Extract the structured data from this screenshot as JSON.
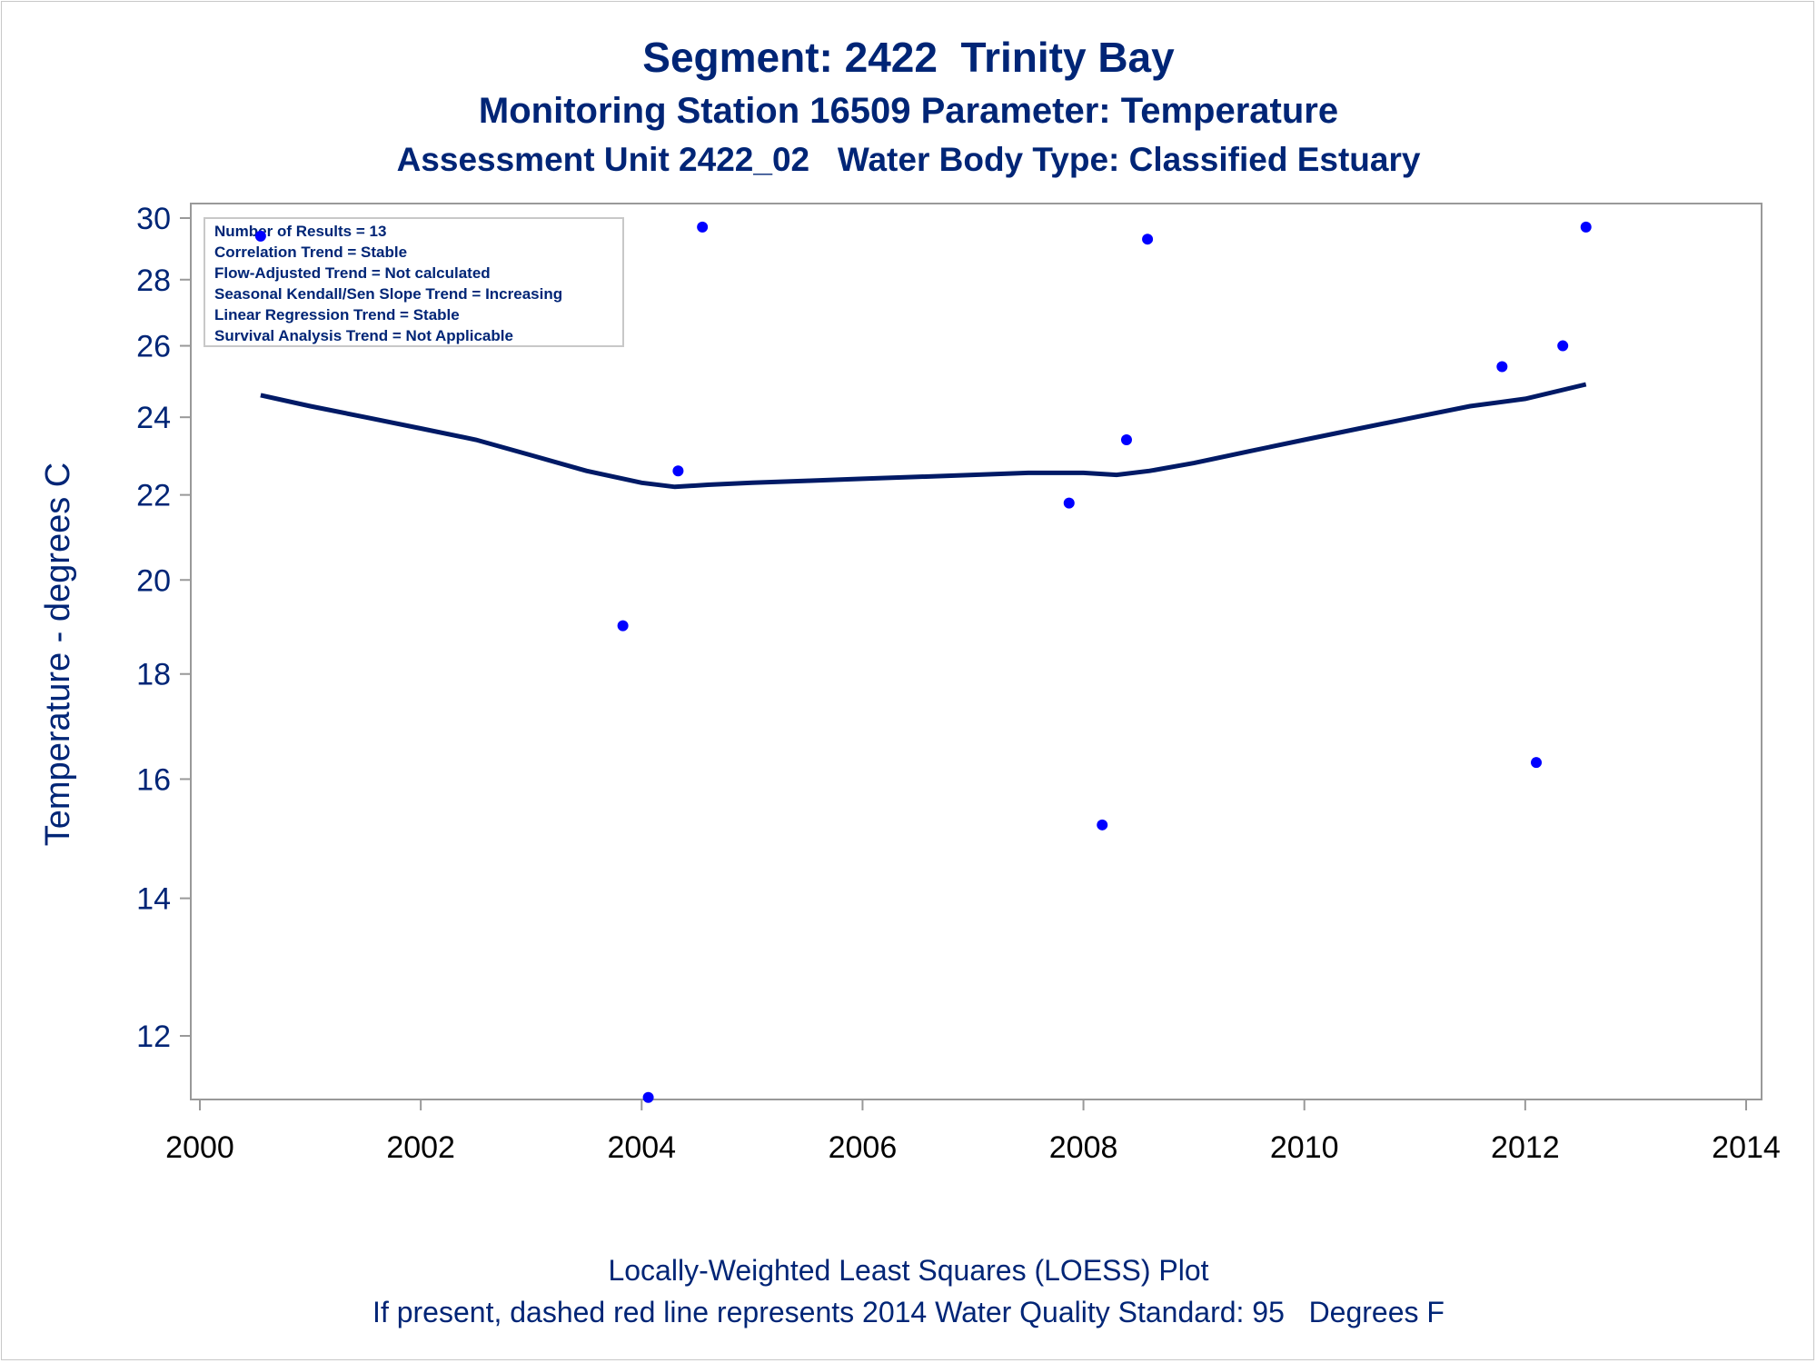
{
  "titles": {
    "line1": "Segment: 2422  Trinity Bay",
    "line2": "Monitoring Station 16509 Parameter: Temperature",
    "line3": "Assessment Unit 2422_02   Water Body Type: Classified Estuary"
  },
  "footnotes": {
    "line1": "Locally-Weighted Least Squares (LOESS) Plot",
    "line2": "If present, dashed red line represents 2014 Water Quality Standard: 95   Degrees F"
  },
  "stats_box": [
    "Number of Results = 13",
    "Correlation Trend = Stable",
    "Flow-Adjusted Trend = Not calculated",
    "Seasonal Kendall/Sen Slope Trend = Increasing",
    "Linear Regression Trend = Stable",
    "Survival Analysis Trend = Not Applicable"
  ],
  "colors": {
    "text": "#002576",
    "points": "#0000ff",
    "loess_line": "#001a66",
    "axis": "#999999"
  },
  "chart_data": {
    "type": "scatter",
    "ylabel": "Temperature - degrees C",
    "xlabel": "",
    "xlim": [
      2000,
      2014
    ],
    "ylim": [
      11,
      30.5
    ],
    "y_scale": "log",
    "grid": false,
    "x_ticks": [
      2000,
      2002,
      2004,
      2006,
      2008,
      2010,
      2012,
      2014
    ],
    "y_ticks": [
      12,
      14,
      16,
      18,
      20,
      22,
      24,
      26,
      28,
      30
    ],
    "series": [
      {
        "kind": "points",
        "x": [
          2000.55,
          2003.83,
          2004.06,
          2004.33,
          2004.55,
          2007.87,
          2008.17,
          2008.39,
          2008.58,
          2011.79,
          2012.1,
          2012.34,
          2012.55
        ],
        "y": [
          29.4,
          19.0,
          11.2,
          22.6,
          29.7,
          21.8,
          15.2,
          23.4,
          29.3,
          25.4,
          16.3,
          26.0,
          29.7
        ]
      },
      {
        "kind": "loess",
        "x": [
          2000.55,
          2001.0,
          2001.5,
          2002.0,
          2002.5,
          2003.0,
          2003.5,
          2004.0,
          2004.3,
          2004.6,
          2005.0,
          2005.5,
          2006.0,
          2006.5,
          2007.0,
          2007.5,
          2008.0,
          2008.3,
          2008.6,
          2009.0,
          2009.5,
          2010.0,
          2010.5,
          2011.0,
          2011.5,
          2012.0,
          2012.55
        ],
        "y": [
          24.6,
          24.3,
          24.0,
          23.7,
          23.4,
          23.0,
          22.6,
          22.3,
          22.2,
          22.25,
          22.3,
          22.35,
          22.4,
          22.45,
          22.5,
          22.55,
          22.55,
          22.5,
          22.6,
          22.8,
          23.1,
          23.4,
          23.7,
          24.0,
          24.3,
          24.5,
          24.9
        ]
      }
    ]
  }
}
